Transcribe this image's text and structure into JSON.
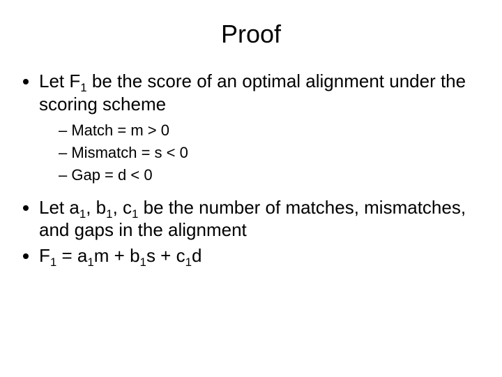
{
  "title": "Proof",
  "bullets": {
    "b1_pre": "Let F",
    "b1_sub": "1",
    "b1_post": " be the score of an optimal alignment under the scoring scheme",
    "sub": {
      "s1": "Match = m > 0",
      "s2": "Mismatch = s < 0",
      "s3": "Gap = d < 0"
    },
    "b2_p1": "Let a",
    "b2_s1": "1",
    "b2_p2": ", b",
    "b2_s2": "1",
    "b2_p3": ", c",
    "b2_s3": "1",
    "b2_p4": " be the number of matches, mismatches, and gaps in the alignment",
    "b3_p1": "F",
    "b3_s1": "1",
    "b3_p2": " = a",
    "b3_s2": "1",
    "b3_p3": "m + b",
    "b3_s3": "1",
    "b3_p4": "s + c",
    "b3_s4": "1",
    "b3_p5": "d"
  },
  "style": {
    "background_color": "#ffffff",
    "text_color": "#000000",
    "title_fontsize": 36,
    "body_fontsize": 26,
    "sub_fontsize": 22,
    "font_family": "Arial"
  }
}
